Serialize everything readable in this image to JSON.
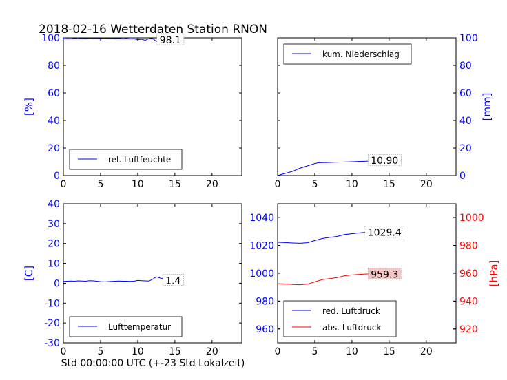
{
  "title": "2018-02-16 Wetterdaten Station RNON",
  "footer_xlabel": "Std 00:00:00 UTC (+-23 Std Lokalzeit)",
  "colors": {
    "axis_left": "#0000ff",
    "axis_right_hpa": "#ff0000",
    "line_blue": "#0000ff",
    "line_red": "#ff0000",
    "box_red_fill": "#f4c6c6"
  },
  "chart_data": [
    {
      "type": "line",
      "panel": "top-left",
      "ylabel": "[%]",
      "xlim": [
        0,
        24
      ],
      "ylim": [
        0,
        100
      ],
      "xticks": [
        0,
        5,
        10,
        15,
        20
      ],
      "yticks": [
        0,
        20,
        40,
        60,
        80,
        100
      ],
      "legend": "bottom",
      "annotation": "98.1",
      "series": [
        {
          "name": "rel. Luftfeuchte",
          "color": "#0000ff",
          "x": [
            0,
            0.5,
            1,
            1.5,
            2,
            2.5,
            3,
            3.5,
            4,
            4.5,
            5,
            5.5,
            6,
            6.5,
            7,
            7.5,
            8,
            8.5,
            9,
            9.5,
            10,
            10.5,
            11,
            11.5,
            12,
            12.3,
            12.6,
            13,
            13.4,
            13.8,
            14.2,
            14.6,
            15,
            15.5
          ],
          "y": [
            99.2,
            99.4,
            99.3,
            99.6,
            99.4,
            99.7,
            99.5,
            99.8,
            99.6,
            99.7,
            99.5,
            99.8,
            99.6,
            99.7,
            99.5,
            99.6,
            99.3,
            99.5,
            99.2,
            99.3,
            98.6,
            99.0,
            98.2,
            99.4,
            99.6,
            98.3,
            97.2,
            98.1,
            97.6,
            98.4,
            98.0,
            98.3,
            98.2,
            98.1
          ]
        }
      ]
    },
    {
      "type": "line",
      "panel": "top-right",
      "ylabel": "[mm]",
      "xlim": [
        0,
        24
      ],
      "ylim": [
        0,
        100
      ],
      "xticks": [
        0,
        5,
        10,
        15,
        20
      ],
      "yticks": [
        0,
        20,
        40,
        60,
        80,
        100
      ],
      "legend": "top",
      "annotation": "10.90",
      "series": [
        {
          "name": "kum. Niederschlag",
          "color": "#0000ff",
          "x": [
            0,
            0.5,
            1,
            1.5,
            2,
            2.5,
            3,
            3.5,
            4,
            4.5,
            5,
            5.5,
            6,
            7,
            8,
            9,
            10,
            11,
            12,
            13,
            14,
            15,
            15.5
          ],
          "y": [
            0,
            0.8,
            1.5,
            2.3,
            3.0,
            4.2,
            5.3,
            6.2,
            7.0,
            7.9,
            8.7,
            9.3,
            9.4,
            9.5,
            9.7,
            9.8,
            10.0,
            10.2,
            10.4,
            10.6,
            10.7,
            10.8,
            10.9
          ]
        }
      ]
    },
    {
      "type": "line",
      "panel": "bottom-left",
      "ylabel": "[C]",
      "xlim": [
        0,
        24
      ],
      "ylim": [
        -30,
        40
      ],
      "xticks": [
        0,
        5,
        10,
        15,
        20
      ],
      "yticks": [
        -30,
        -20,
        -10,
        0,
        10,
        20,
        30,
        40
      ],
      "legend": "bottom",
      "annotation": "1.4",
      "series": [
        {
          "name": "Lufttemperatur",
          "color": "#0000ff",
          "x": [
            0,
            0.5,
            1,
            1.5,
            2,
            2.5,
            3,
            3.5,
            4,
            4.5,
            5,
            5.5,
            6,
            6.5,
            7,
            7.5,
            8,
            8.5,
            9,
            9.5,
            10,
            10.5,
            11,
            11.5,
            12,
            12.5,
            13,
            13.5,
            14,
            14.5,
            15,
            15.5
          ],
          "y": [
            0.9,
            1.0,
            1.1,
            1.0,
            1.2,
            1.1,
            1.0,
            1.3,
            1.2,
            1.0,
            0.8,
            0.7,
            0.8,
            0.9,
            1.0,
            1.1,
            1.0,
            1.0,
            0.9,
            1.0,
            1.4,
            1.3,
            1.2,
            1.1,
            2.0,
            3.2,
            2.6,
            2.2,
            1.8,
            1.6,
            1.5,
            1.4
          ]
        }
      ]
    },
    {
      "type": "line",
      "panel": "bottom-right",
      "ylabel_right": "[hPa]",
      "xlim": [
        0,
        24
      ],
      "ylim_left": [
        950,
        1050
      ],
      "ylim_right": [
        910,
        1010
      ],
      "xticks": [
        0,
        5,
        10,
        15,
        20
      ],
      "yticks_left": [
        960,
        980,
        1000,
        1020,
        1040
      ],
      "yticks_right": [
        920,
        940,
        960,
        980,
        1000
      ],
      "legend": "bottom",
      "annotations": [
        "1029.4",
        "959.3"
      ],
      "series": [
        {
          "name": "red. Luftdruck",
          "color": "#0000ff",
          "axis": "left",
          "x": [
            0,
            1,
            2,
            3,
            4,
            5,
            6,
            7,
            8,
            9,
            10,
            11,
            12,
            13,
            14,
            15,
            15.5
          ],
          "y": [
            1022.3,
            1022.1,
            1021.8,
            1021.6,
            1022.0,
            1023.5,
            1025.0,
            1025.8,
            1026.5,
            1027.8,
            1028.4,
            1029.0,
            1029.5,
            1029.6,
            1029.5,
            1029.4,
            1029.4
          ]
        },
        {
          "name": "abs. Luftdruck",
          "color": "#ff0000",
          "axis": "right",
          "x": [
            0,
            1,
            2,
            3,
            4,
            5,
            6,
            7,
            8,
            9,
            10,
            11,
            12,
            13,
            14,
            15,
            15.5
          ],
          "y": [
            952.5,
            952.4,
            952.0,
            951.8,
            952.2,
            953.8,
            955.5,
            956.2,
            956.9,
            958.2,
            958.8,
            959.2,
            959.5,
            959.6,
            959.4,
            959.3,
            959.3
          ]
        }
      ]
    }
  ]
}
